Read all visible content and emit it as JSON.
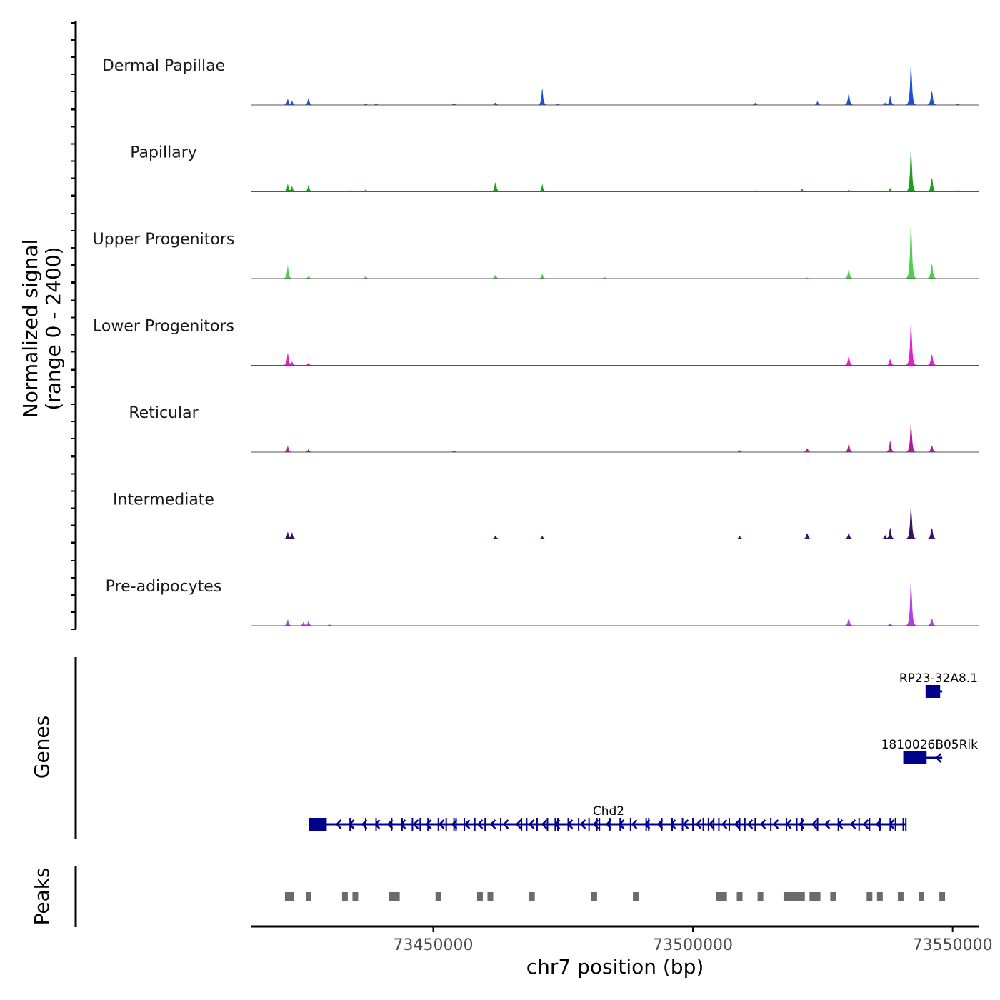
{
  "chart_data": {
    "type": "area",
    "title": "",
    "ylabel_line1": "Normalized signal",
    "ylabel_line2": "(range 0 - 2400)",
    "xlabel": "chr7 position (bp)",
    "xlim": [
      73415000,
      73555000
    ],
    "x_ticks": [
      {
        "value": 73450000,
        "label": "73450000"
      },
      {
        "value": 73500000,
        "label": "73500000"
      },
      {
        "value": 73550000,
        "label": "73550000"
      }
    ],
    "ylim": [
      0,
      2400
    ],
    "series": [
      {
        "name": "Dermal Papillae",
        "color": "#1f4fd6",
        "peaks": [
          [
            73422000,
            0.12
          ],
          [
            73422800,
            0.09
          ],
          [
            73426000,
            0.15
          ],
          [
            73437000,
            0.03
          ],
          [
            73439000,
            0.03
          ],
          [
            73454000,
            0.04
          ],
          [
            73462000,
            0.06
          ],
          [
            73471000,
            0.33
          ],
          [
            73474000,
            0.03
          ],
          [
            73512000,
            0.05
          ],
          [
            73524000,
            0.08
          ],
          [
            73530000,
            0.28
          ],
          [
            73537000,
            0.05
          ],
          [
            73538000,
            0.2
          ],
          [
            73542000,
            1.0
          ],
          [
            73546000,
            0.38
          ],
          [
            73551000,
            0.03
          ]
        ]
      },
      {
        "name": "Papillary",
        "color": "#1aa01a",
        "peaks": [
          [
            73422000,
            0.15
          ],
          [
            73422800,
            0.12
          ],
          [
            73426000,
            0.15
          ],
          [
            73434000,
            0.03
          ],
          [
            73437000,
            0.05
          ],
          [
            73462000,
            0.25
          ],
          [
            73471000,
            0.15
          ],
          [
            73512000,
            0.03
          ],
          [
            73521000,
            0.07
          ],
          [
            73530000,
            0.05
          ],
          [
            73538000,
            0.08
          ],
          [
            73542000,
            1.05
          ],
          [
            73546000,
            0.38
          ],
          [
            73551000,
            0.03
          ]
        ]
      },
      {
        "name": "Upper Progenitors",
        "color": "#4ccf4c",
        "peaks": [
          [
            73422000,
            0.25
          ],
          [
            73426000,
            0.05
          ],
          [
            73437000,
            0.05
          ],
          [
            73462000,
            0.09
          ],
          [
            73471000,
            0.09
          ],
          [
            73483000,
            0.03
          ],
          [
            73522000,
            0.02
          ],
          [
            73530000,
            0.22
          ],
          [
            73542000,
            1.35
          ],
          [
            73546000,
            0.4
          ]
        ]
      },
      {
        "name": "Lower Progenitors",
        "color": "#e020d0",
        "peaks": [
          [
            73422000,
            0.25
          ],
          [
            73422800,
            0.08
          ],
          [
            73426000,
            0.05
          ],
          [
            73530000,
            0.22
          ],
          [
            73538000,
            0.14
          ],
          [
            73542000,
            1.05
          ],
          [
            73546000,
            0.3
          ]
        ]
      },
      {
        "name": "Reticular",
        "color": "#b01898",
        "peaks": [
          [
            73422000,
            0.12
          ],
          [
            73426000,
            0.06
          ],
          [
            73454000,
            0.04
          ],
          [
            73509000,
            0.04
          ],
          [
            73522000,
            0.1
          ],
          [
            73530000,
            0.2
          ],
          [
            73538000,
            0.25
          ],
          [
            73542000,
            0.7
          ],
          [
            73546000,
            0.18
          ]
        ]
      },
      {
        "name": "Intermediate",
        "color": "#3a1060",
        "peaks": [
          [
            73422000,
            0.14
          ],
          [
            73422800,
            0.14
          ],
          [
            73462000,
            0.08
          ],
          [
            73471000,
            0.06
          ],
          [
            73509000,
            0.06
          ],
          [
            73522000,
            0.14
          ],
          [
            73530000,
            0.15
          ],
          [
            73537000,
            0.08
          ],
          [
            73538000,
            0.25
          ],
          [
            73542000,
            0.8
          ],
          [
            73546000,
            0.3
          ]
        ]
      },
      {
        "name": "Pre-adipocytes",
        "color": "#b040e8",
        "peaks": [
          [
            73422000,
            0.12
          ],
          [
            73425000,
            0.08
          ],
          [
            73426000,
            0.1
          ],
          [
            73430000,
            0.03
          ],
          [
            73530000,
            0.18
          ],
          [
            73538000,
            0.05
          ],
          [
            73542000,
            1.1
          ],
          [
            73546000,
            0.2
          ]
        ]
      }
    ],
    "genes": [
      {
        "name": "RP23-32A8.1",
        "start": 73544800,
        "end": 73548000,
        "strand": "-",
        "utr": [
          73544800,
          73547600
        ],
        "exons": [],
        "row": 0
      },
      {
        "name": "1810026B05Rik",
        "start": 73540500,
        "end": 73548000,
        "strand": "-",
        "utr": [
          73540500,
          73545000
        ],
        "exons": [],
        "row": 1
      },
      {
        "name": "Chd2",
        "start": 73426000,
        "end": 73541000,
        "strand": "-",
        "utr": [
          73426000,
          73429500
        ],
        "exons": [
          73434000,
          73437000,
          73439000,
          73442000,
          73444000,
          73446000,
          73447500,
          73449000,
          73451000,
          73452500,
          73454000,
          73454400,
          73456000,
          73458000,
          73460000,
          73463000,
          73467000,
          73468000,
          73470000,
          73472000,
          73473500,
          73474000,
          73476000,
          73478000,
          73480000,
          73481500,
          73482000,
          73484000,
          73486000,
          73488000,
          73491000,
          73491500,
          73494000,
          73496000,
          73498000,
          73500000,
          73502000,
          73503000,
          73504000,
          73505000,
          73507000,
          73509000,
          73510000,
          73512000,
          73515000,
          73518000,
          73520000,
          73521000,
          73524000,
          73528000,
          73532000,
          73534000,
          73536000,
          73538000,
          73539000,
          73540500,
          73541000
        ],
        "row": 2
      }
    ],
    "peaks": [
      73422000,
      73422600,
      73426000,
      73433000,
      73435000,
      73442000,
      73443000,
      73451000,
      73459000,
      73461000,
      73469000,
      73481000,
      73489000,
      73505000,
      73506000,
      73509000,
      73513000,
      73518000,
      73519000,
      73520000,
      73521000,
      73523000,
      73524000,
      73527000,
      73534000,
      73536000,
      73540000,
      73544000,
      73548000
    ]
  },
  "panels": {
    "genes_label": "Genes",
    "peaks_label": "Peaks"
  },
  "colors": {
    "axis": "#000000",
    "baseline": "#555555",
    "gene": "#00008b",
    "peak": "#6b6b6b"
  }
}
